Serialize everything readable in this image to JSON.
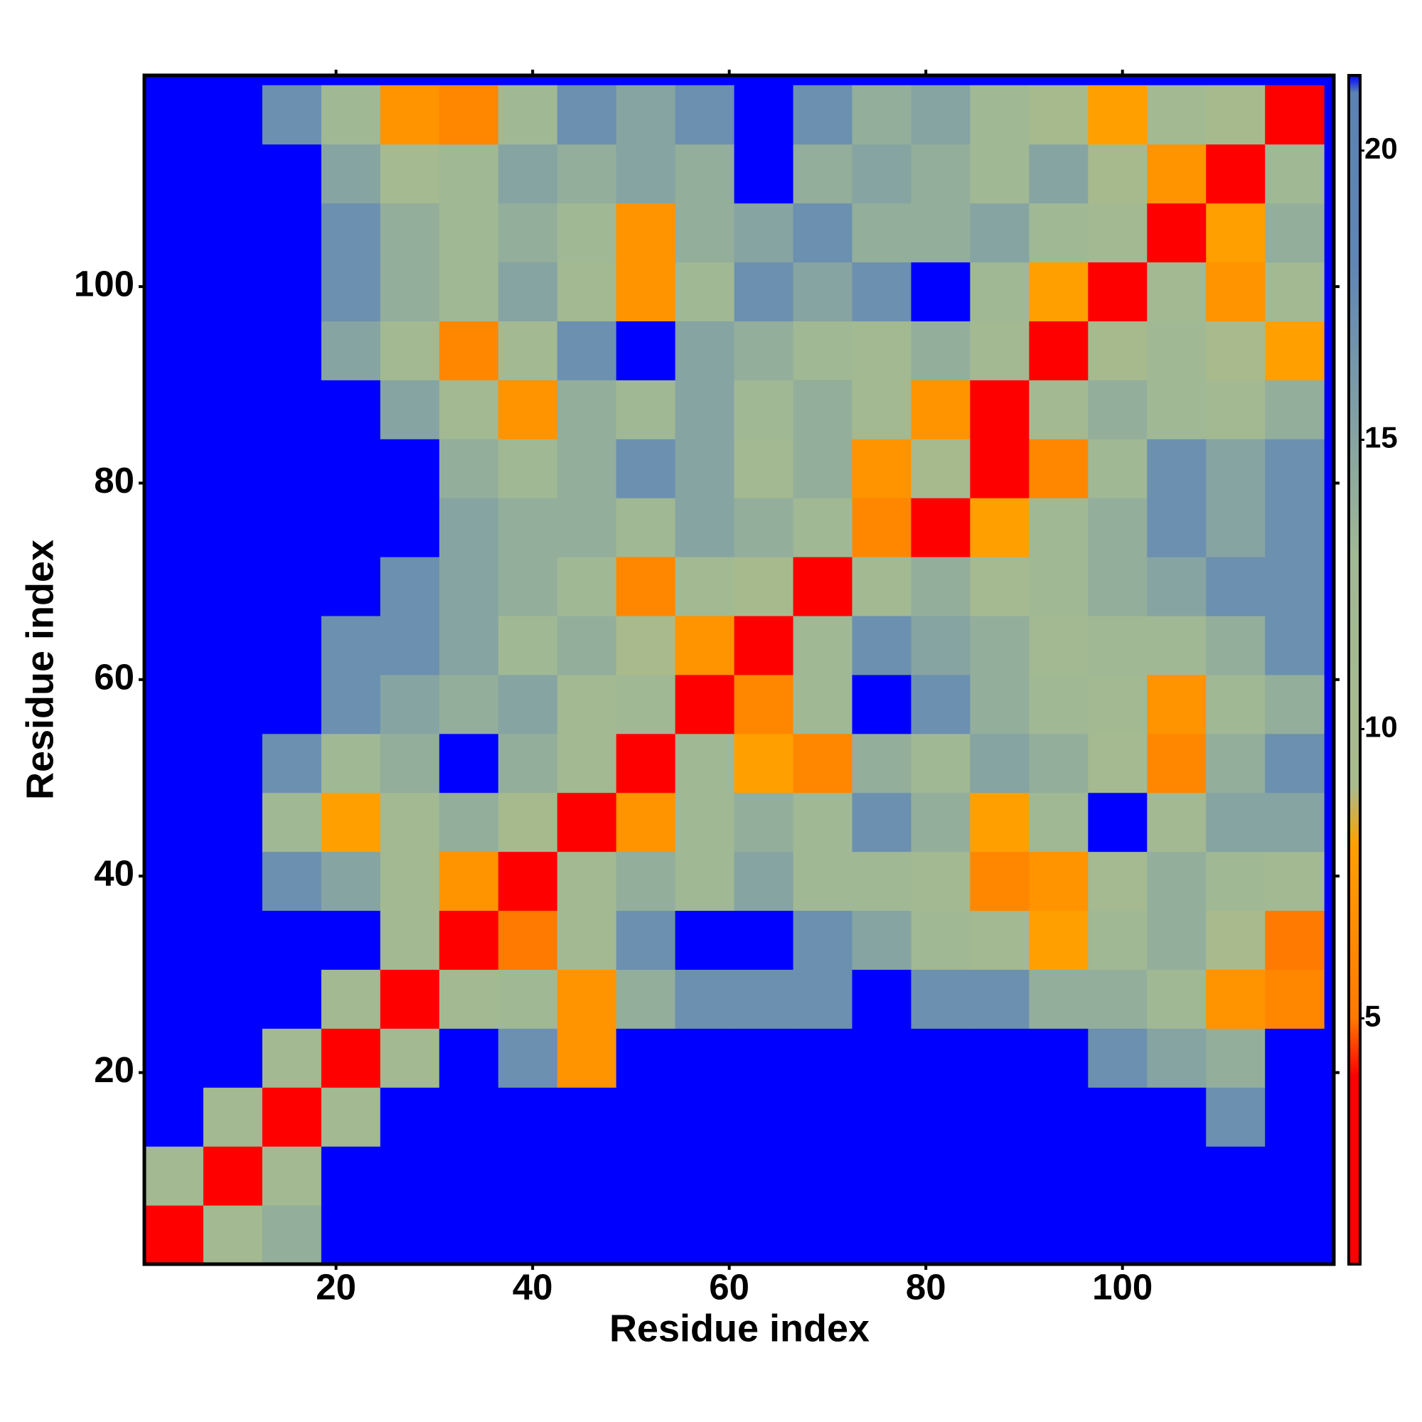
{
  "chart_data": {
    "type": "heatmap",
    "xlabel": "Residue index",
    "ylabel": "Residue index",
    "xbins": [
      0.5,
      6.5,
      12.5,
      18.5,
      24.5,
      30.5,
      36.5,
      42.5,
      48.5,
      54.5,
      60.5,
      66.5,
      72.5,
      78.5,
      84.5,
      90.5,
      96.5,
      102.5,
      108.5,
      114.5,
      120.5
    ],
    "ybins": [
      0.5,
      6.5,
      12.5,
      18.5,
      24.5,
      30.5,
      36.5,
      42.5,
      48.5,
      54.5,
      60.5,
      66.5,
      72.5,
      78.5,
      84.5,
      90.5,
      96.5,
      102.5,
      108.5,
      114.5,
      120.5
    ],
    "xlim": [
      0.5,
      121.5
    ],
    "ylim": [
      0.5,
      121.5
    ],
    "xticks": [
      20,
      40,
      60,
      80,
      100
    ],
    "yticks": [
      20,
      40,
      60,
      80,
      100
    ],
    "clim": [
      0.75,
      21.3
    ],
    "cticks": [
      5,
      10,
      15,
      20
    ],
    "colorscale": [
      [
        0.75,
        "#ff0000"
      ],
      [
        4,
        "#ff0000"
      ],
      [
        5,
        "#ff7a00"
      ],
      [
        8,
        "#ffa000"
      ],
      [
        9,
        "#a9bb8c"
      ],
      [
        13,
        "#a0b894"
      ],
      [
        18,
        "#5f86b6"
      ],
      [
        21,
        "#5a82b4"
      ],
      [
        21.3,
        "#0000ff"
      ]
    ],
    "z": [
      [
        3,
        12,
        14,
        22,
        22,
        22,
        22,
        22,
        22,
        22,
        22,
        22,
        22,
        22,
        22,
        22,
        22,
        22,
        22,
        22
      ],
      [
        12,
        3,
        12,
        22,
        22,
        22,
        22,
        22,
        22,
        22,
        22,
        22,
        22,
        22,
        22,
        22,
        22,
        22,
        22,
        22
      ],
      [
        22,
        12,
        3,
        12,
        22,
        22,
        22,
        22,
        22,
        22,
        22,
        22,
        22,
        22,
        22,
        22,
        22,
        22,
        17,
        22
      ],
      [
        22,
        22,
        12,
        3,
        12,
        22,
        17,
        7,
        22,
        22,
        22,
        22,
        22,
        22,
        22,
        22,
        17,
        15,
        14,
        22
      ],
      [
        22,
        22,
        22,
        12,
        3,
        12,
        13,
        7,
        14,
        17,
        17,
        17,
        22,
        17,
        17,
        14,
        14,
        13,
        7,
        6
      ],
      [
        22,
        22,
        22,
        22,
        12,
        3,
        5,
        12,
        17,
        22,
        22,
        17,
        15,
        13,
        12,
        8,
        13,
        14,
        9,
        5
      ],
      [
        22,
        22,
        17,
        15,
        12,
        7,
        3,
        12,
        14,
        13,
        15,
        13,
        13,
        12,
        6,
        7,
        11,
        14,
        13,
        12
      ],
      [
        22,
        22,
        13,
        8,
        12,
        14,
        10,
        3,
        7,
        13,
        14,
        13,
        17,
        14,
        8,
        13,
        22,
        12,
        15,
        15
      ],
      [
        22,
        22,
        17,
        13,
        14,
        22,
        14,
        12,
        3,
        13,
        8,
        6,
        14,
        13,
        15,
        14,
        11,
        6,
        14,
        17
      ],
      [
        22,
        22,
        22,
        17,
        15,
        14,
        15,
        12,
        13,
        3,
        6,
        13,
        22,
        17,
        14,
        13,
        12,
        7,
        13,
        14
      ],
      [
        22,
        22,
        22,
        17,
        17,
        15,
        13,
        14,
        9,
        7,
        3,
        13,
        17,
        15,
        14,
        12,
        13,
        13,
        14,
        17
      ],
      [
        22,
        22,
        22,
        22,
        17,
        15,
        14,
        13,
        6,
        12,
        10,
        3,
        12,
        14,
        11,
        13,
        14,
        15,
        17,
        17
      ],
      [
        22,
        22,
        22,
        22,
        22,
        15,
        14,
        14,
        13,
        15,
        14,
        13,
        6,
        3,
        8,
        13,
        14,
        17,
        15,
        17
      ],
      [
        22,
        22,
        22,
        22,
        22,
        14,
        13,
        14,
        17,
        15,
        12,
        14,
        7,
        10,
        3,
        6,
        13,
        17,
        15,
        17
      ],
      [
        22,
        22,
        22,
        22,
        15,
        12,
        7,
        14,
        13,
        15,
        13,
        14,
        12,
        7,
        3,
        12,
        14,
        13,
        12,
        14
      ],
      [
        22,
        22,
        22,
        15,
        12,
        6,
        12,
        17,
        22,
        15,
        14,
        13,
        12,
        14,
        12,
        3,
        10,
        13,
        9,
        8
      ],
      [
        22,
        22,
        22,
        17,
        14,
        13,
        15,
        12,
        7,
        13,
        17,
        15,
        17,
        22,
        13,
        8,
        3,
        12,
        7,
        12
      ],
      [
        22,
        22,
        22,
        17,
        14,
        13,
        14,
        13,
        7,
        14,
        15,
        17,
        14,
        14,
        15,
        13,
        12,
        3,
        8,
        14
      ],
      [
        22,
        22,
        22,
        15,
        11,
        13,
        15,
        14,
        15,
        14,
        22,
        14,
        15,
        14,
        13,
        15,
        10,
        7,
        3,
        13
      ],
      [
        22,
        22,
        17,
        13,
        7,
        6,
        13,
        17,
        15,
        17,
        22,
        17,
        14,
        15,
        13,
        10,
        8,
        12,
        10,
        3
      ]
    ]
  }
}
